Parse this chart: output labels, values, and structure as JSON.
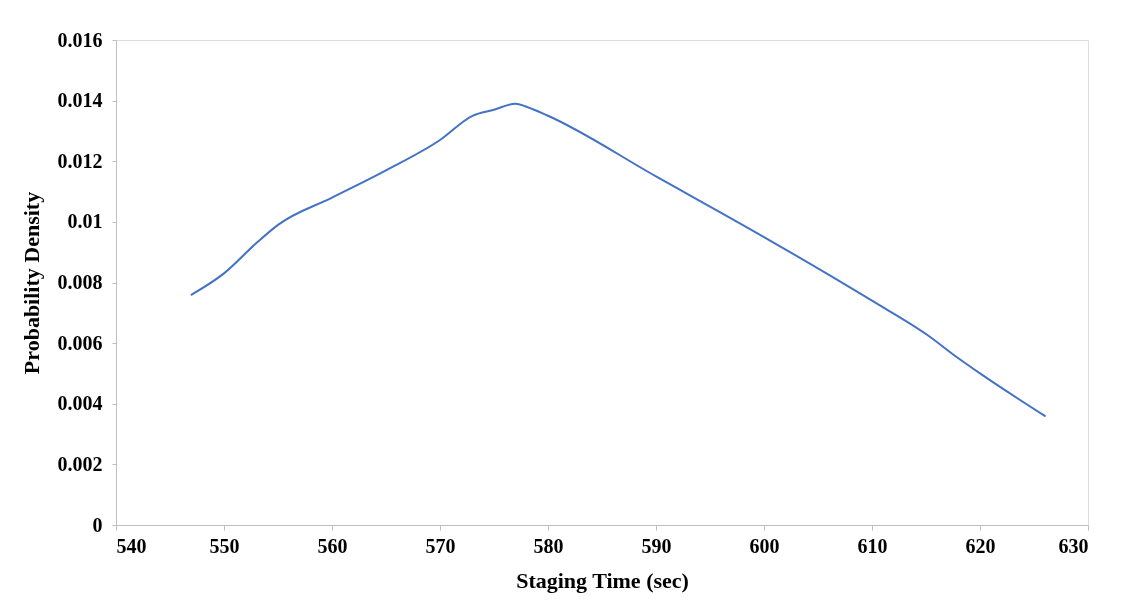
{
  "chart_data": {
    "type": "line",
    "xlabel": "Staging Time (sec)",
    "ylabel": "Probability Density",
    "x": [
      547,
      550,
      553,
      555,
      560,
      565,
      570,
      573,
      575,
      577,
      578,
      580,
      590,
      600,
      610,
      615,
      618,
      620,
      626
    ],
    "series": [
      {
        "color": "#4472c4",
        "values": [
          0.0076,
          0.0083,
          0.0093,
          0.0099,
          0.0108,
          0.0117,
          0.0127,
          0.0135,
          0.0137,
          0.0139,
          0.0138,
          0.0135,
          0.0115,
          0.0095,
          0.0074,
          0.0063,
          0.0055,
          0.005,
          0.0036
        ]
      }
    ],
    "xlim": [
      540,
      630
    ],
    "xticks": [
      540,
      550,
      560,
      570,
      580,
      590,
      600,
      610,
      620,
      630
    ],
    "ylim": [
      0,
      0.016
    ],
    "yticks": [
      0,
      0.002,
      0.004,
      0.006,
      0.008,
      0.01,
      0.012,
      0.014,
      0.016
    ],
    "grid": false,
    "marker": "none",
    "line_style": "solid"
  }
}
